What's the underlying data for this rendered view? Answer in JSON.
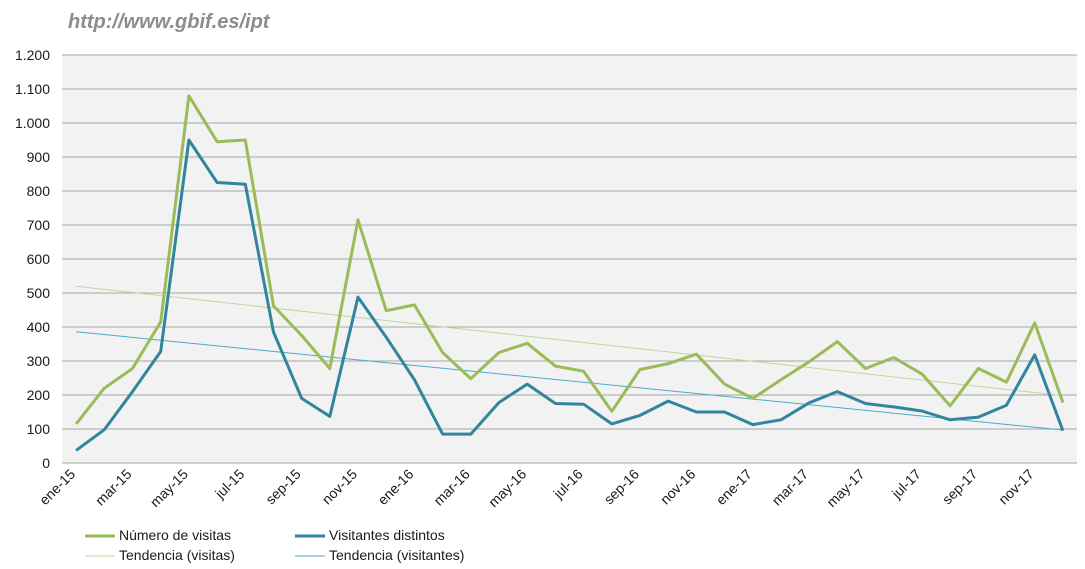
{
  "source_url": "http://www.gbif.es/ipt",
  "colors": {
    "visits": "#9bbb59",
    "visitors": "#31859c",
    "trend_visits": "#c3d69b",
    "trend_visitors": "#4bacc6",
    "plot_bg": "#f2f2f2",
    "grid": "#a6a6a6"
  },
  "chart_data": {
    "type": "line",
    "title": "",
    "xlabel": "",
    "ylabel": "",
    "ylim": [
      0,
      1200
    ],
    "yticks": [
      {
        "value": 0,
        "label": "0"
      },
      {
        "value": 100,
        "label": "100"
      },
      {
        "value": 200,
        "label": "200"
      },
      {
        "value": 300,
        "label": "300"
      },
      {
        "value": 400,
        "label": "400"
      },
      {
        "value": 500,
        "label": "500"
      },
      {
        "value": 600,
        "label": "600"
      },
      {
        "value": 700,
        "label": "700"
      },
      {
        "value": 800,
        "label": "800"
      },
      {
        "value": 900,
        "label": "900"
      },
      {
        "value": 1000,
        "label": "1.000"
      },
      {
        "value": 1100,
        "label": "1.100"
      },
      {
        "value": 1200,
        "label": "1.200"
      }
    ],
    "grid": true,
    "legend_position": "bottom-left",
    "x": [
      "ene-15",
      "feb-15",
      "mar-15",
      "abr-15",
      "may-15",
      "jun-15",
      "jul-15",
      "ago-15",
      "sep-15",
      "oct-15",
      "nov-15",
      "dic-15",
      "ene-16",
      "feb-16",
      "mar-16",
      "abr-16",
      "may-16",
      "jun-16",
      "jul-16",
      "ago-16",
      "sep-16",
      "oct-16",
      "nov-16",
      "dic-16",
      "ene-17",
      "feb-17",
      "mar-17",
      "abr-17",
      "may-17",
      "jun-17",
      "jul-17",
      "ago-17",
      "sep-17",
      "oct-17",
      "nov-17",
      "dic-17"
    ],
    "x_tick_labels": [
      "ene-15",
      "mar-15",
      "may-15",
      "jul-15",
      "sep-15",
      "nov-15",
      "ene-16",
      "mar-16",
      "may-16",
      "jul-16",
      "sep-16",
      "nov-16",
      "ene-17",
      "mar-17",
      "may-17",
      "jul-17",
      "sep-17",
      "nov-17"
    ],
    "series": [
      {
        "name": "Número de visitas",
        "values": [
          115,
          220,
          278,
          415,
          1080,
          945,
          950,
          462,
          375,
          278,
          715,
          448,
          465,
          325,
          248,
          325,
          352,
          285,
          270,
          152,
          275,
          292,
          320,
          232,
          190,
          245,
          298,
          357,
          278,
          310,
          262,
          168,
          278,
          238,
          412,
          178
        ]
      },
      {
        "name": "Visitantes distintos",
        "values": [
          37,
          98,
          210,
          328,
          950,
          825,
          820,
          385,
          190,
          137,
          488,
          370,
          245,
          85,
          85,
          178,
          232,
          175,
          173,
          115,
          140,
          182,
          150,
          150,
          113,
          127,
          177,
          210,
          175,
          165,
          153,
          127,
          135,
          170,
          318,
          95
        ]
      }
    ],
    "trendlines": [
      {
        "name": "Tendencia (visitas)",
        "start": 520,
        "end": 198
      },
      {
        "name": "Tendencia (visitantes)",
        "start": 386,
        "end": 97
      }
    ]
  }
}
